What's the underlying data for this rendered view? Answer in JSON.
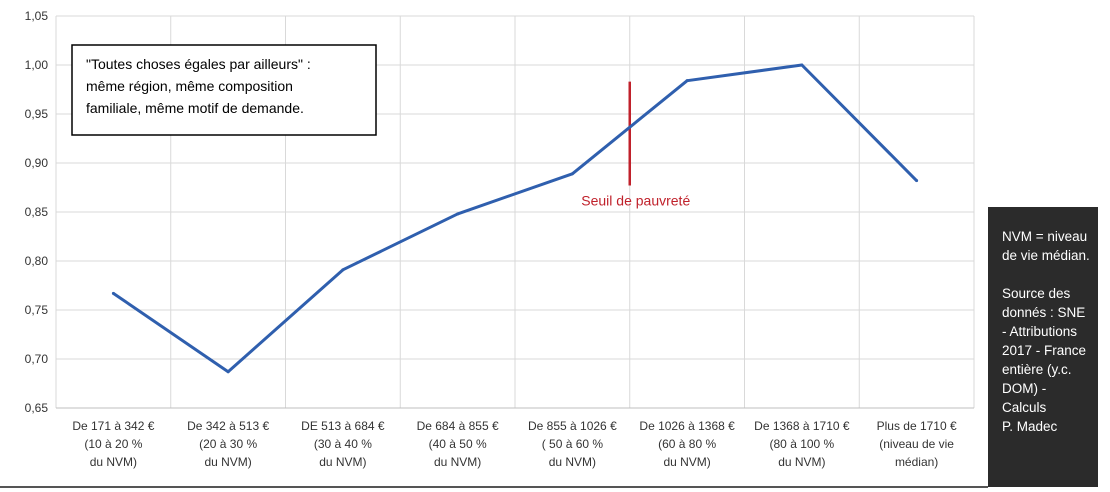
{
  "chart_data": {
    "type": "line",
    "ylim": [
      0.65,
      1.05
    ],
    "yticks": [
      "0,65",
      "0,70",
      "0,75",
      "0,80",
      "0,85",
      "0,90",
      "0,95",
      "1,00",
      "1,05"
    ],
    "grid": true,
    "categories": [
      [
        "De 171 à 342 €",
        "(10 à 20 %",
        "du NVM)"
      ],
      [
        "De 342 à 513 €",
        "(20 à 30 %",
        "du NVM)"
      ],
      [
        "DE 513 à 684 €",
        "(30 à 40 %",
        "du NVM)"
      ],
      [
        "De 684 à 855 €",
        "(40 à 50 %",
        "du NVM)"
      ],
      [
        "De 855 à 1026 €",
        "( 50 à 60 %",
        "du NVM)"
      ],
      [
        "De 1026 à 1368 €",
        "(60 à 80 %",
        "du NVM)"
      ],
      [
        "De 1368 à 1710 €",
        "(80 à 100 %",
        "du NVM)"
      ],
      [
        "Plus de 1710 €",
        "(niveau de vie",
        "médian)"
      ]
    ],
    "series": [
      {
        "values": [
          0.767,
          0.687,
          0.791,
          0.848,
          0.889,
          0.984,
          1.0,
          0.882
        ],
        "color": "#2f5fae"
      }
    ],
    "marker": {
      "label": "Seuil de pauvreté",
      "position_index": 5.0,
      "y_range": [
        0.877,
        0.983
      ],
      "color": "#c0212b"
    },
    "annotation_box": [
      "\"Toutes choses égales par ailleurs\" :",
      "même région, même composition",
      "familiale, même motif de demande."
    ]
  },
  "side_note": {
    "definition": [
      "NVM = niveau",
      "de vie médian."
    ],
    "source": [
      "Source des",
      "donnés : SNE",
      "- Attributions",
      "2017 - France",
      "entière (y.c.",
      "DOM) - Calculs",
      "P. Madec"
    ]
  }
}
